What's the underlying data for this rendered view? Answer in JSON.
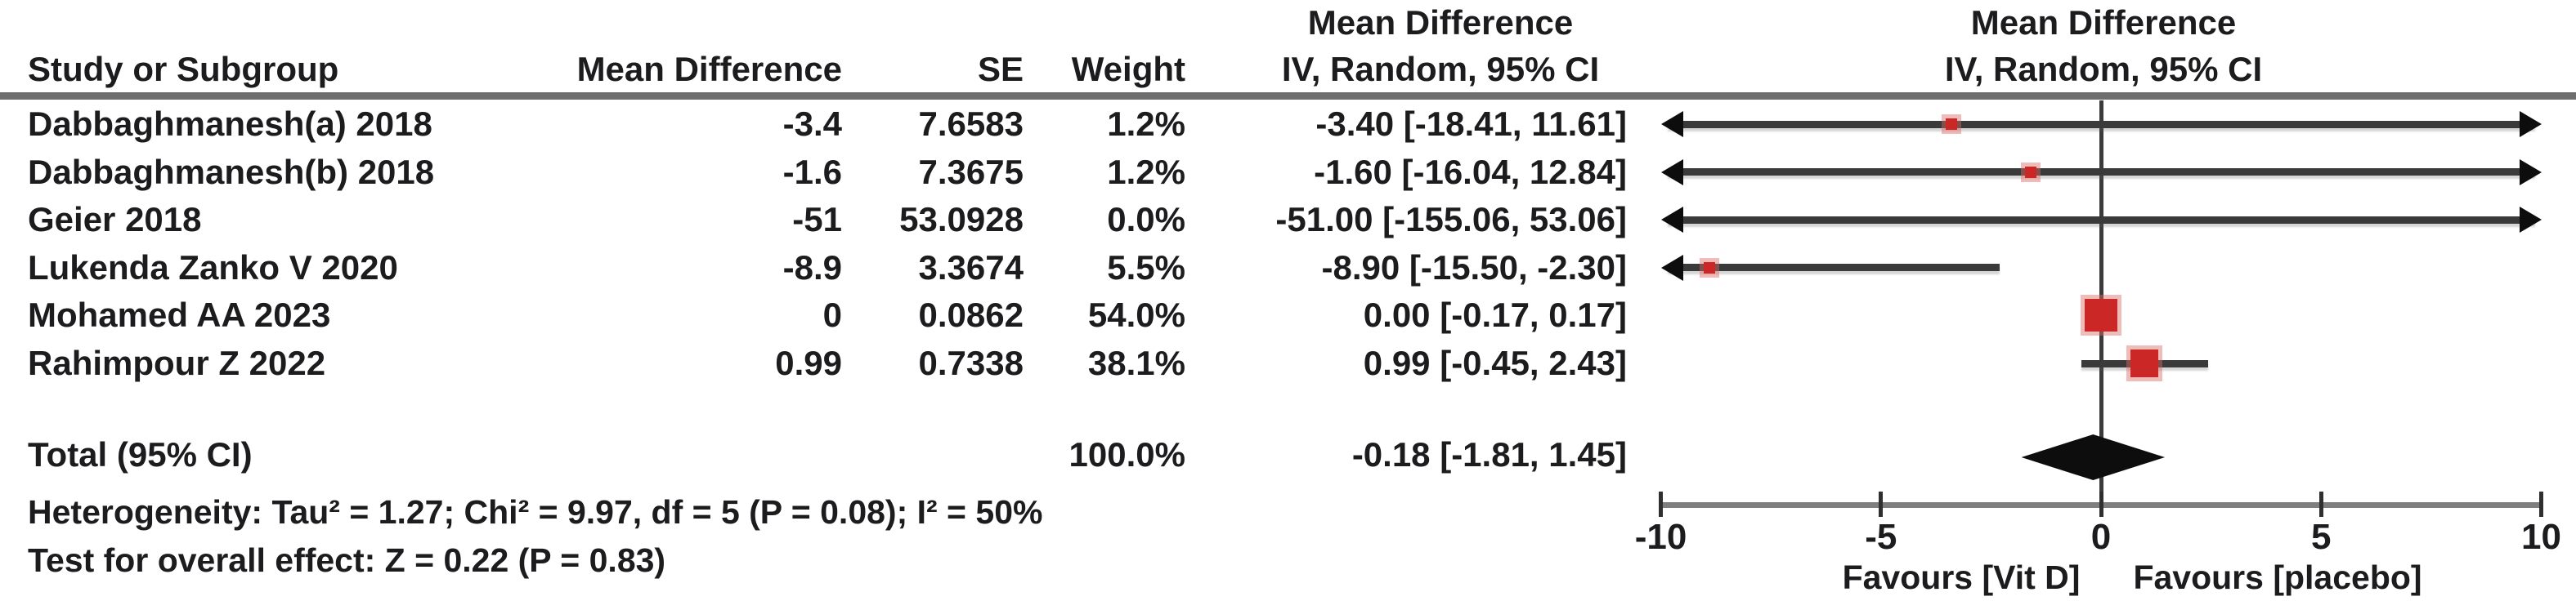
{
  "header": {
    "over_text_col": "Mean Difference",
    "over_plot_col": "Mean Difference",
    "study": "Study or Subgroup",
    "mean_difference": "Mean Difference",
    "se": "SE",
    "weight": "Weight",
    "iv_random_text": "IV, Random, 95% CI",
    "iv_random_plot": "IV, Random, 95% CI"
  },
  "rows": [
    {
      "study": "Dabbaghmanesh(a) 2018",
      "md": "-3.4",
      "se": "7.6583",
      "weight": "1.2%",
      "ci": "-3.40 [-18.41, 11.61]"
    },
    {
      "study": "Dabbaghmanesh(b) 2018",
      "md": "-1.6",
      "se": "7.3675",
      "weight": "1.2%",
      "ci": "-1.60 [-16.04, 12.84]"
    },
    {
      "study": "Geier 2018",
      "md": "-51",
      "se": "53.0928",
      "weight": "0.0%",
      "ci": "-51.00 [-155.06, 53.06]"
    },
    {
      "study": "Lukenda Zanko V 2020",
      "md": "-8.9",
      "se": "3.3674",
      "weight": "5.5%",
      "ci": "-8.90 [-15.50, -2.30]"
    },
    {
      "study": "Mohamed AA 2023",
      "md": "0",
      "se": "0.0862",
      "weight": "54.0%",
      "ci": "0.00 [-0.17, 0.17]"
    },
    {
      "study": "Rahimpour Z 2022",
      "md": "0.99",
      "se": "0.7338",
      "weight": "38.1%",
      "ci": "0.99 [-0.45, 2.43]"
    }
  ],
  "total": {
    "label": "Total (95% CI)",
    "weight": "100.0%",
    "ci": "-0.18 [-1.81, 1.45]"
  },
  "stats": {
    "heterogeneity": "Heterogeneity: Tau² = 1.27; Chi² = 9.97, df = 5 (P = 0.08); I² = 50%",
    "overall_effect": "Test for overall effect: Z = 0.22 (P = 0.83)"
  },
  "axis": {
    "favours_left": "Favours [Vit D]",
    "favours_right": "Favours [placebo]"
  },
  "chart_data": {
    "type": "forest",
    "title": "Mean Difference",
    "model": "IV, Random, 95% CI",
    "x_axis": {
      "min": -10,
      "max": 10,
      "ticks": [
        -10,
        -5,
        0,
        5,
        10
      ],
      "label_left": "Favours [Vit D]",
      "label_right": "Favours [placebo]"
    },
    "studies": [
      {
        "name": "Dabbaghmanesh(a) 2018",
        "md": -3.4,
        "se": 7.6583,
        "weight_pct": 1.2,
        "ci_low": -18.41,
        "ci_high": 11.61
      },
      {
        "name": "Dabbaghmanesh(b) 2018",
        "md": -1.6,
        "se": 7.3675,
        "weight_pct": 1.2,
        "ci_low": -16.04,
        "ci_high": 12.84
      },
      {
        "name": "Geier 2018",
        "md": -51.0,
        "se": 53.0928,
        "weight_pct": 0.0,
        "ci_low": -155.06,
        "ci_high": 53.06
      },
      {
        "name": "Lukenda Zanko V 2020",
        "md": -8.9,
        "se": 3.3674,
        "weight_pct": 5.5,
        "ci_low": -15.5,
        "ci_high": -2.3
      },
      {
        "name": "Mohamed AA 2023",
        "md": 0.0,
        "se": 0.0862,
        "weight_pct": 54.0,
        "ci_low": -0.17,
        "ci_high": 0.17
      },
      {
        "name": "Rahimpour Z 2022",
        "md": 0.99,
        "se": 0.7338,
        "weight_pct": 38.1,
        "ci_low": -0.45,
        "ci_high": 2.43
      }
    ],
    "total": {
      "md": -0.18,
      "ci_low": -1.81,
      "ci_high": 1.45,
      "weight_pct": 100.0
    },
    "heterogeneity": {
      "tau2": 1.27,
      "chi2": 9.97,
      "df": 5,
      "p": 0.08,
      "i2_pct": 50
    },
    "overall_effect": {
      "z": 0.22,
      "p": 0.83
    }
  },
  "colors": {
    "marker": "#cb2727",
    "marker_halo": "rgba(222,106,102,0.45)",
    "diamond": "#0d0d0d",
    "ci_line": "#3a3a3a",
    "axis_line": "#7f7f7f",
    "zero_line": "#3b3b3b",
    "rule": "#6e6e6e",
    "text": "#1c1c1e"
  }
}
